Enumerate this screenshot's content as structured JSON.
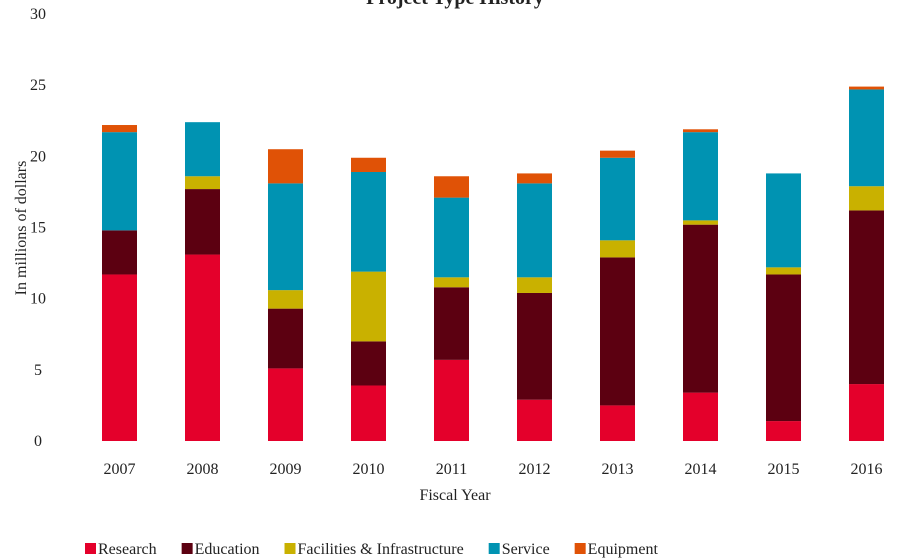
{
  "chart_data": {
    "type": "stacked_bar",
    "title": "Project Type History",
    "x_label": "Fiscal Year",
    "y_label": "In millions of dollars",
    "categories": [
      "2007",
      "2008",
      "2009",
      "2010",
      "2011",
      "2012",
      "2013",
      "2014",
      "2015",
      "2016"
    ],
    "series": [
      {
        "name": "Research",
        "color": "#e4002b",
        "values": [
          11.7,
          13.1,
          5.1,
          3.9,
          5.7,
          2.9,
          2.5,
          3.4,
          1.4,
          4.0
        ]
      },
      {
        "name": "Education",
        "color": "#5c0011",
        "values": [
          3.1,
          4.6,
          4.2,
          3.1,
          5.1,
          7.5,
          10.4,
          11.8,
          10.3,
          12.2
        ]
      },
      {
        "name": "Facilities & Infrastructure",
        "color": "#c9b100",
        "values": [
          0,
          0.9,
          1.3,
          4.9,
          0.7,
          1.1,
          1.2,
          0.3,
          0.5,
          1.7
        ]
      },
      {
        "name": "Service",
        "color": "#0093b2",
        "values": [
          6.9,
          3.8,
          7.5,
          7.0,
          5.6,
          6.6,
          5.8,
          6.2,
          6.6,
          6.8
        ]
      },
      {
        "name": "Equipment",
        "color": "#e05206",
        "values": [
          0.5,
          0,
          2.4,
          1.0,
          1.5,
          0.7,
          0.5,
          0.2,
          0,
          0.2
        ]
      }
    ],
    "ylim": [
      0,
      30
    ],
    "yticks": [
      0,
      5,
      10,
      15,
      20,
      25,
      30
    ],
    "grid": false,
    "legend": "bottom"
  }
}
